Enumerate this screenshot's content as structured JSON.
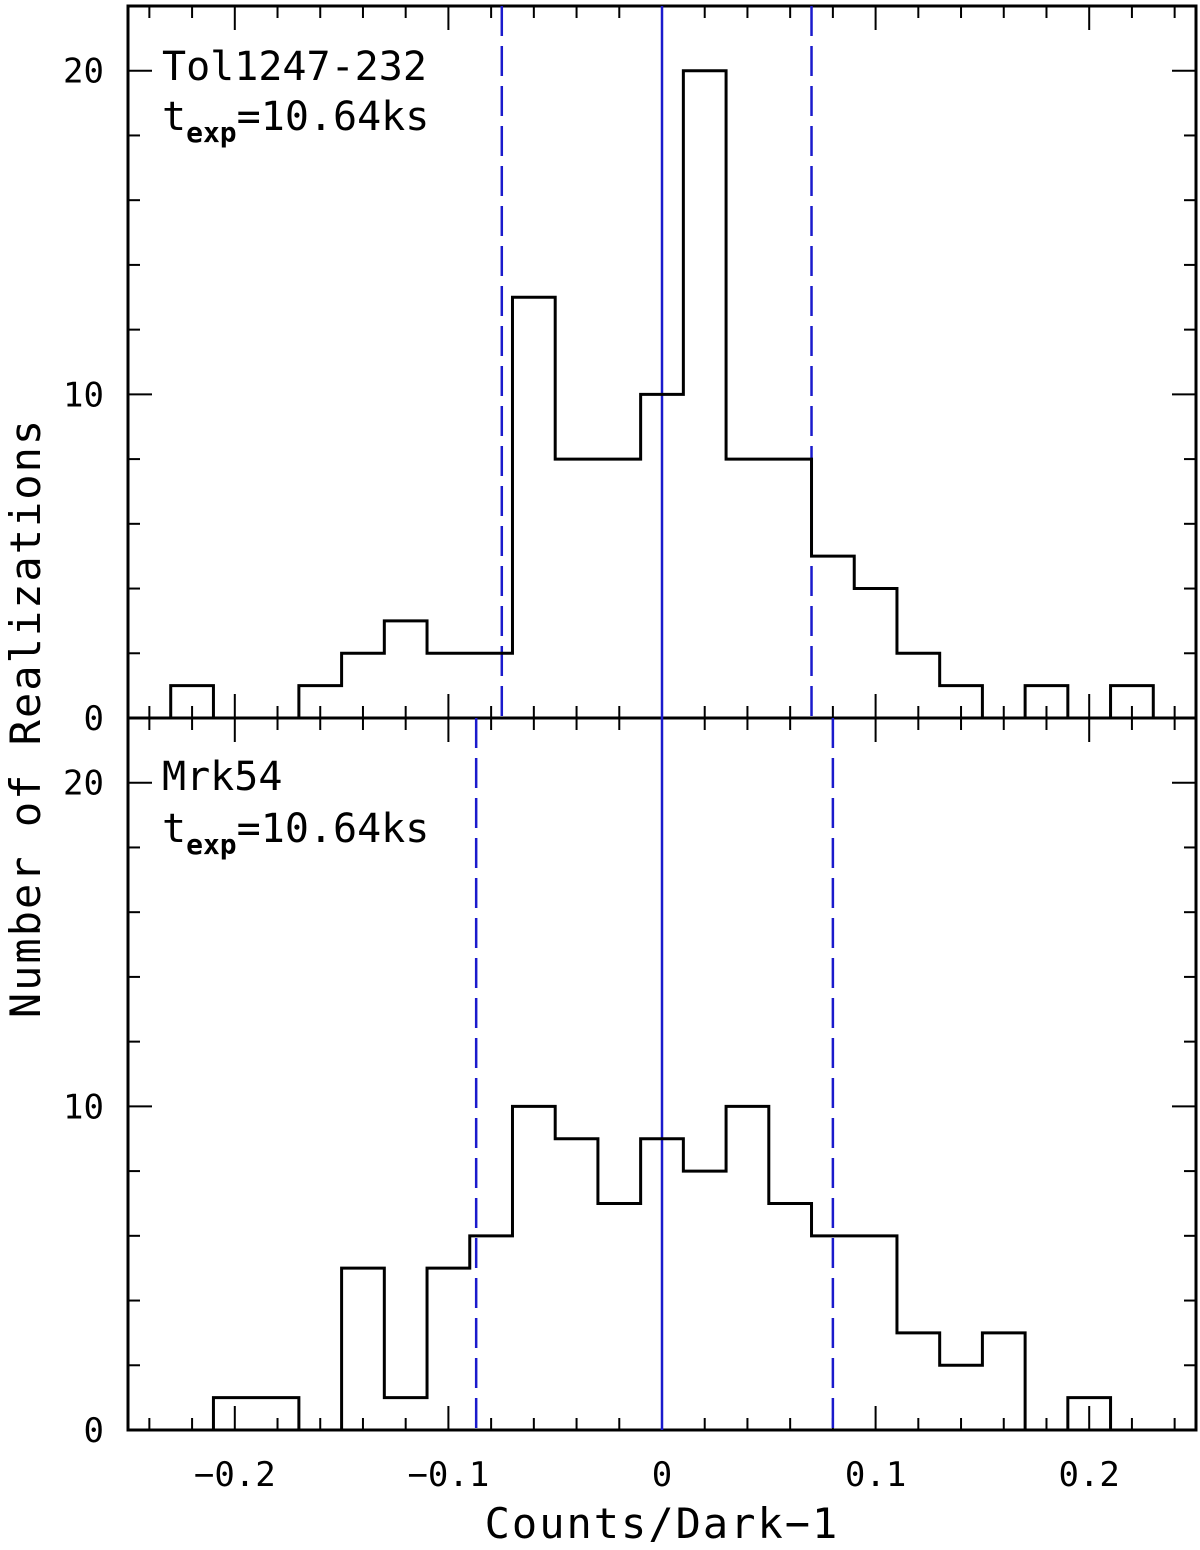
{
  "chart_data": [
    {
      "type": "step-histogram",
      "panel": "top",
      "annotation": {
        "name": "Tol1247-232",
        "texp_base": "t",
        "texp_sub": "exp",
        "texp_value": "=10.64ks"
      },
      "bin_edges": [
        -0.23,
        -0.21,
        -0.19,
        -0.17,
        -0.15,
        -0.13,
        -0.11,
        -0.09,
        -0.07,
        -0.05,
        -0.03,
        -0.01,
        0.01,
        0.03,
        0.05,
        0.07,
        0.09,
        0.11,
        0.13,
        0.15,
        0.17,
        0.19,
        0.21,
        0.23
      ],
      "counts": [
        1,
        0,
        0,
        1,
        2,
        3,
        2,
        2,
        13,
        8,
        8,
        10,
        20,
        8,
        8,
        5,
        4,
        2,
        1,
        0,
        1,
        0,
        1
      ],
      "solid_line_x": 0.0,
      "dashed_lines_x": [
        -0.075,
        0.07
      ],
      "ylim": [
        0,
        22
      ],
      "yticks": [
        0,
        10,
        20
      ],
      "line_color": "#000000",
      "marker_color": "#1a1acc"
    },
    {
      "type": "step-histogram",
      "panel": "bottom",
      "annotation": {
        "name": "Mrk54",
        "texp_base": "t",
        "texp_sub": "exp",
        "texp_value": "=10.64ks"
      },
      "bin_edges": [
        -0.21,
        -0.19,
        -0.17,
        -0.15,
        -0.13,
        -0.11,
        -0.09,
        -0.07,
        -0.05,
        -0.03,
        -0.01,
        0.01,
        0.03,
        0.05,
        0.07,
        0.09,
        0.11,
        0.13,
        0.15,
        0.17,
        0.19,
        0.21
      ],
      "counts": [
        1,
        1,
        0,
        5,
        1,
        5,
        6,
        10,
        9,
        7,
        9,
        8,
        10,
        7,
        6,
        6,
        3,
        2,
        3,
        0,
        1
      ],
      "solid_line_x": 0.0,
      "dashed_lines_x": [
        -0.087,
        0.08
      ],
      "ylim": [
        0,
        22
      ],
      "yticks": [
        0,
        10,
        20
      ],
      "line_color": "#000000",
      "marker_color": "#1a1acc"
    }
  ],
  "axes": {
    "xlabel": "Counts/Dark−1",
    "ylabel": "Number of Realizations",
    "xlim": [
      -0.25,
      0.25
    ],
    "xticks": [
      {
        "value": -0.2,
        "label": "−0.2"
      },
      {
        "value": -0.1,
        "label": "−0.1"
      },
      {
        "value": 0.0,
        "label": "0"
      },
      {
        "value": 0.1,
        "label": "0.1"
      },
      {
        "value": 0.2,
        "label": "0.2"
      }
    ],
    "yticks": [
      {
        "value": 0,
        "label": "0"
      },
      {
        "value": 10,
        "label": "10"
      },
      {
        "value": 20,
        "label": "20"
      }
    ]
  }
}
